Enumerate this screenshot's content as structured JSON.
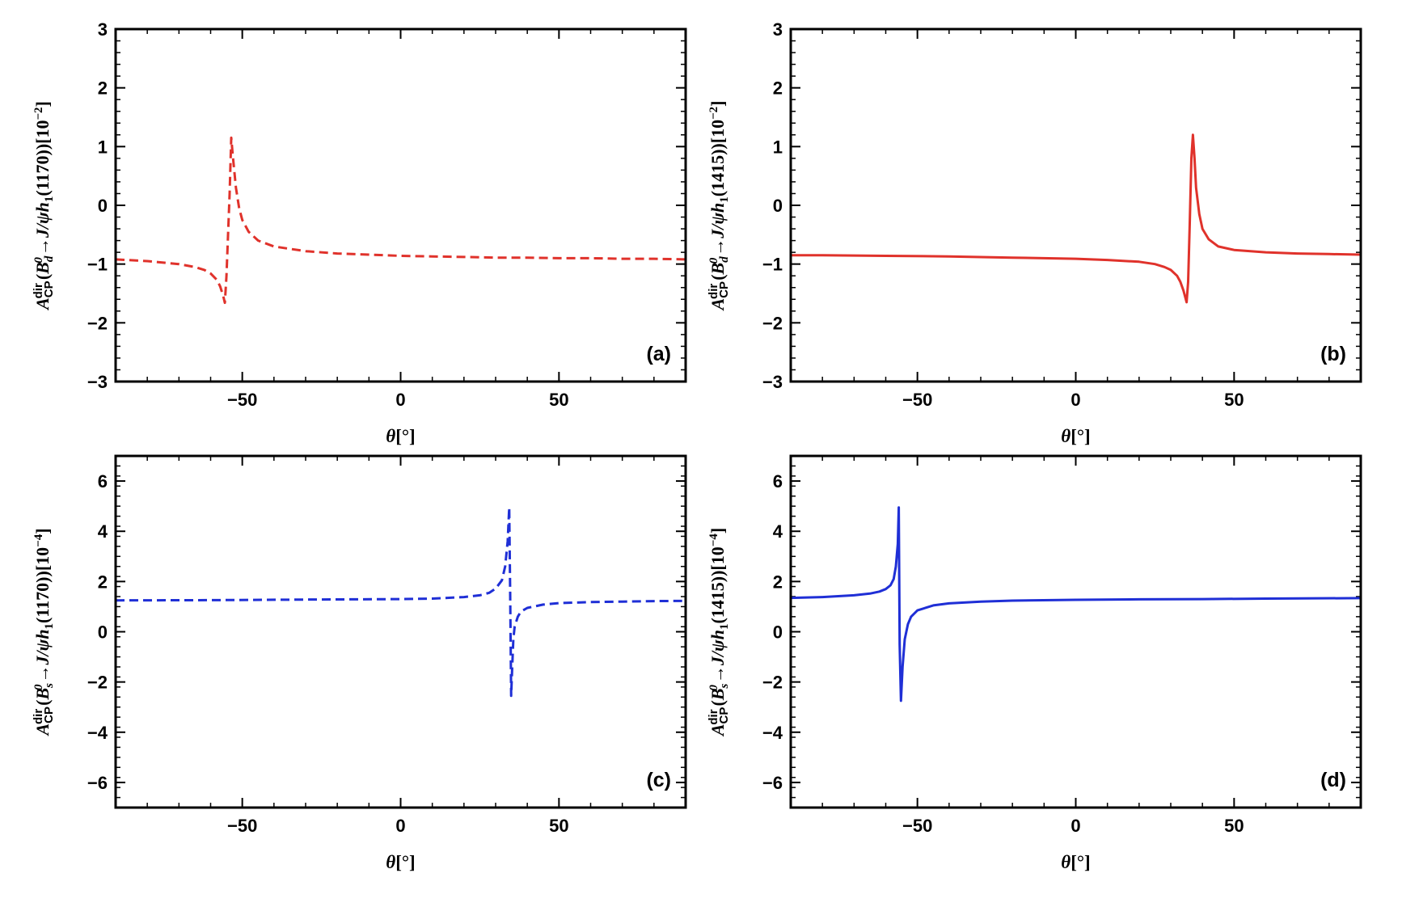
{
  "chart_data": [
    {
      "type": "line",
      "panel": "(a)",
      "line_style": "dashed",
      "color": "#e0322b",
      "xlim": [
        -90,
        90
      ],
      "ylim": [
        -3,
        3
      ],
      "xticks": [
        -50,
        0,
        50
      ],
      "yticks": [
        -3,
        -2,
        -1,
        0,
        1,
        2,
        3
      ],
      "xtick_labels": [
        "−50",
        "0",
        "50"
      ],
      "ytick_labels": [
        "−3",
        "−2",
        "−1",
        "0",
        "1",
        "2",
        "3"
      ],
      "xlabel": {
        "symbol": "θ",
        "unit": "[°]"
      },
      "ylabel": {
        "symbol": "A",
        "sub": "CP",
        "sup": "dir",
        "meson": "B",
        "meson_sup": "0",
        "meson_sub": "d",
        "arrow": "→",
        "final": "J/ψh",
        "final_sub": "1",
        "mass": "(1170))",
        "scale_prefix": "[10",
        "scale_exp": "−2",
        "scale_suffix": "]"
      },
      "x": [
        -90,
        -80,
        -70,
        -65,
        -62,
        -60,
        -58,
        -57,
        -56,
        -55.5,
        -55,
        -54,
        -53.5,
        -53,
        -52,
        -51,
        -50,
        -48,
        -45,
        -40,
        -30,
        -20,
        -10,
        0,
        10,
        20,
        30,
        40,
        50,
        60,
        70,
        80,
        90
      ],
      "values": [
        -0.92,
        -0.95,
        -1.0,
        -1.05,
        -1.1,
        -1.16,
        -1.27,
        -1.38,
        -1.55,
        -1.66,
        -1.2,
        0.2,
        1.15,
        0.85,
        0.3,
        -0.05,
        -0.25,
        -0.45,
        -0.6,
        -0.7,
        -0.78,
        -0.82,
        -0.84,
        -0.86,
        -0.87,
        -0.88,
        -0.89,
        -0.89,
        -0.9,
        -0.9,
        -0.91,
        -0.91,
        -0.92
      ]
    },
    {
      "type": "line",
      "panel": "(b)",
      "line_style": "solid",
      "color": "#e0322b",
      "xlim": [
        -90,
        90
      ],
      "ylim": [
        -3,
        3
      ],
      "xticks": [
        -50,
        0,
        50
      ],
      "yticks": [
        -3,
        -2,
        -1,
        0,
        1,
        2,
        3
      ],
      "xtick_labels": [
        "−50",
        "0",
        "50"
      ],
      "ytick_labels": [
        "−3",
        "−2",
        "−1",
        "0",
        "1",
        "2",
        "3"
      ],
      "xlabel": {
        "symbol": "θ",
        "unit": "[°]"
      },
      "ylabel": {
        "symbol": "A",
        "sub": "CP",
        "sup": "dir",
        "meson": "B",
        "meson_sup": "0",
        "meson_sub": "d",
        "arrow": "→",
        "final": "J/ψh",
        "final_sub": "1",
        "mass": "(1415))",
        "scale_prefix": "[10",
        "scale_exp": "−2",
        "scale_suffix": "]"
      },
      "x": [
        -90,
        -80,
        -60,
        -40,
        -20,
        0,
        10,
        20,
        25,
        28,
        30,
        32,
        33,
        34,
        35,
        35.5,
        36,
        36.5,
        37,
        37.5,
        38,
        39,
        40,
        42,
        45,
        50,
        60,
        70,
        80,
        90
      ],
      "values": [
        -0.85,
        -0.85,
        -0.86,
        -0.87,
        -0.89,
        -0.91,
        -0.93,
        -0.96,
        -1.0,
        -1.05,
        -1.1,
        -1.2,
        -1.3,
        -1.45,
        -1.65,
        -1.3,
        -0.3,
        0.8,
        1.2,
        0.8,
        0.3,
        -0.15,
        -0.4,
        -0.58,
        -0.7,
        -0.76,
        -0.8,
        -0.82,
        -0.83,
        -0.84
      ]
    },
    {
      "type": "line",
      "panel": "(c)",
      "line_style": "dashed",
      "color": "#1f2fd6",
      "xlim": [
        -90,
        90
      ],
      "ylim": [
        -7,
        7
      ],
      "xticks": [
        -50,
        0,
        50
      ],
      "yticks": [
        -6,
        -4,
        -2,
        0,
        2,
        4,
        6
      ],
      "xtick_labels": [
        "−50",
        "0",
        "50"
      ],
      "ytick_labels": [
        "−6",
        "−4",
        "−2",
        "0",
        "2",
        "4",
        "6"
      ],
      "xlabel": {
        "symbol": "θ",
        "unit": "[°]"
      },
      "ylabel": {
        "symbol": "A",
        "sub": "CP",
        "sup": "dir",
        "meson": "B",
        "meson_sup": "0",
        "meson_sub": "s",
        "arrow": "→",
        "final": "J/ψh",
        "final_sub": "1",
        "mass": "(1170))",
        "scale_prefix": "[10",
        "scale_exp": "−4",
        "scale_suffix": "]"
      },
      "x": [
        -90,
        -60,
        -30,
        0,
        10,
        20,
        25,
        28,
        30,
        32,
        33,
        33.8,
        34.3,
        34.6,
        34.9,
        35.2,
        35.6,
        36,
        37,
        38,
        40,
        45,
        50,
        60,
        70,
        80,
        90
      ],
      "values": [
        1.25,
        1.26,
        1.28,
        1.3,
        1.32,
        1.38,
        1.45,
        1.55,
        1.72,
        2.05,
        2.6,
        3.6,
        4.95,
        1.5,
        -2.55,
        -1.5,
        -0.3,
        0.2,
        0.6,
        0.8,
        0.95,
        1.08,
        1.14,
        1.18,
        1.2,
        1.22,
        1.23
      ]
    },
    {
      "type": "line",
      "panel": "(d)",
      "line_style": "solid",
      "color": "#1f2fd6",
      "xlim": [
        -90,
        90
      ],
      "ylim": [
        -7,
        7
      ],
      "xticks": [
        -50,
        0,
        50
      ],
      "yticks": [
        -6,
        -4,
        -2,
        0,
        2,
        4,
        6
      ],
      "xtick_labels": [
        "−50",
        "0",
        "50"
      ],
      "ytick_labels": [
        "−6",
        "−4",
        "−2",
        "0",
        "2",
        "4",
        "6"
      ],
      "xlabel": {
        "symbol": "θ",
        "unit": "[°]"
      },
      "ylabel": {
        "symbol": "A",
        "sub": "CP",
        "sup": "dir",
        "meson": "B",
        "meson_sup": "0",
        "meson_sub": "s",
        "arrow": "→",
        "final": "J/ψh",
        "final_sub": "1",
        "mass": "(1415))",
        "scale_prefix": "[10",
        "scale_exp": "−4",
        "scale_suffix": "]"
      },
      "x": [
        -90,
        -80,
        -70,
        -65,
        -62,
        -60,
        -58.5,
        -57.5,
        -56.8,
        -56.2,
        -55.9,
        -55.6,
        -55.2,
        -54.7,
        -54,
        -53,
        -52,
        -50,
        -45,
        -40,
        -30,
        -20,
        0,
        20,
        40,
        60,
        90
      ],
      "values": [
        1.35,
        1.38,
        1.45,
        1.52,
        1.6,
        1.7,
        1.85,
        2.1,
        2.6,
        3.5,
        4.95,
        -0.5,
        -2.75,
        -1.4,
        -0.3,
        0.3,
        0.6,
        0.85,
        1.05,
        1.13,
        1.2,
        1.24,
        1.27,
        1.29,
        1.3,
        1.32,
        1.34
      ]
    }
  ]
}
